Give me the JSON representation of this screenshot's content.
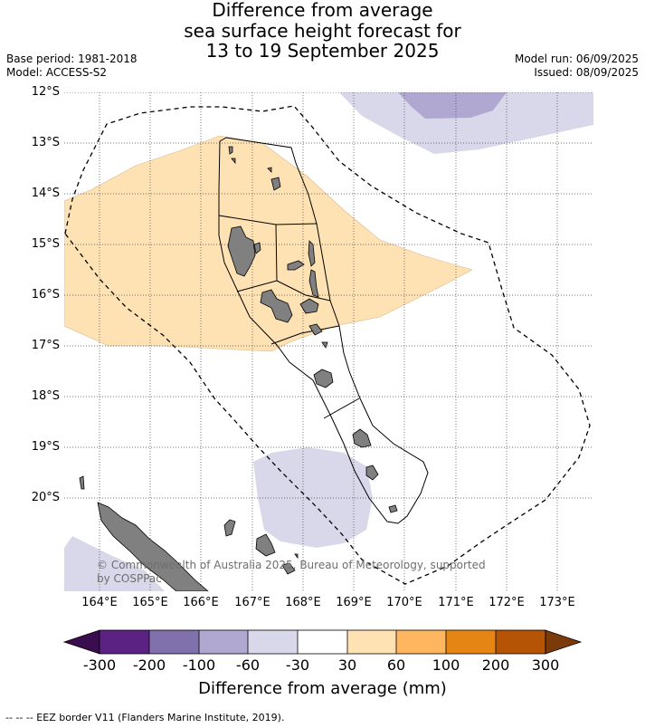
{
  "title": {
    "line1": "Difference from average",
    "line2": "sea surface height forecast for",
    "line3": "13 to 19 September 2025"
  },
  "meta": {
    "base_period": "Base period: 1981-2018",
    "model": "Model: ACCESS-S2",
    "model_run": "Model run: 06/09/2025",
    "issued": "Issued: 08/09/2025"
  },
  "axes": {
    "lat_labels": [
      "12°S",
      "13°S",
      "14°S",
      "15°S",
      "16°S",
      "17°S",
      "18°S",
      "19°S",
      "20°S"
    ],
    "lon_labels": [
      "164°E",
      "165°E",
      "166°E",
      "167°E",
      "168°E",
      "169°E",
      "170°E",
      "171°E",
      "172°E",
      "173°E"
    ],
    "lat_range": [
      -21.8,
      -12.0
    ],
    "lon_range": [
      163.3,
      173.7
    ]
  },
  "copyright": "© Commonwealth of Australia 2025, Bureau of Meteorology, supported by COSPPac",
  "colorbar": {
    "title": "Difference from average (mm)",
    "tick_labels": [
      "-300",
      "-200",
      "-100",
      "-60",
      "-30",
      "30",
      "60",
      "100",
      "200",
      "300"
    ],
    "colors": [
      "#3a0d4e",
      "#5c2283",
      "#8071ad",
      "#b0a8d0",
      "#d8d8ea",
      "#ffffff",
      "#ffe2b3",
      "#ffb65e",
      "#e58614",
      "#b65406",
      "#7a3a0a"
    ]
  },
  "legend_footnote": "-- -- -- EEZ border V11 (Flanders Marine Institute, 2019).",
  "colors": {
    "land": "#808080",
    "positive_30_60": "#ffe2b3",
    "negative_30_60": "#d8d8ea",
    "negative_60_100": "#b0a8d0"
  }
}
